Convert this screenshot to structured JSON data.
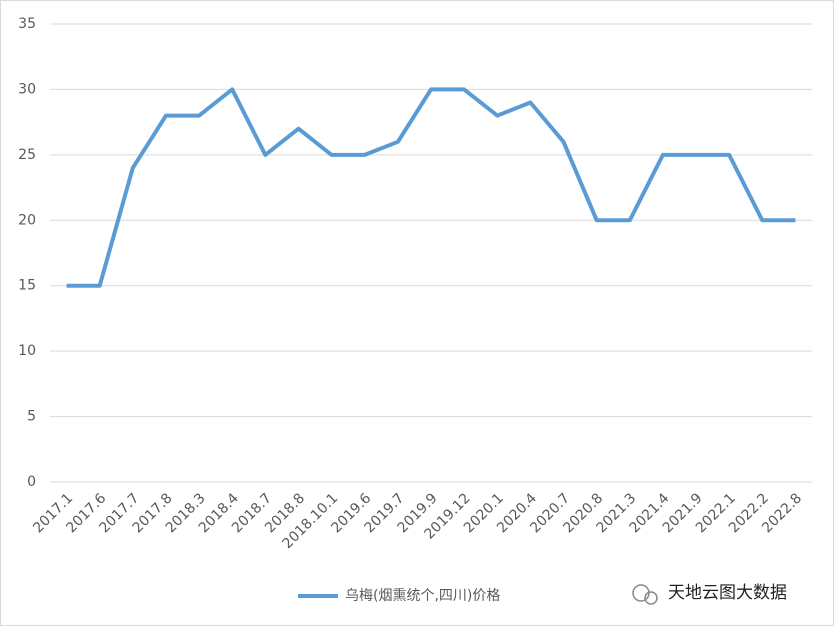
{
  "chart_data": {
    "type": "line",
    "categories": [
      "2017.1",
      "2017.6",
      "2017.7",
      "2017.8",
      "2018.3",
      "2018.4",
      "2018.7",
      "2018.8",
      "2018.10.1",
      "2019.6",
      "2019.7",
      "2019.9",
      "2019.12",
      "2020.1",
      "2020.4",
      "2020.7",
      "2020.8",
      "2021.3",
      "2021.4",
      "2021.9",
      "2022.1",
      "2022.2",
      "2022.8"
    ],
    "series": [
      {
        "name": "乌梅(烟熏统个,四川)价格",
        "color": "#5b9bd5",
        "values": [
          15,
          15,
          24,
          28,
          28,
          30,
          25,
          27,
          25,
          25,
          26,
          30,
          30,
          28,
          29,
          26,
          20,
          20,
          25,
          25,
          25,
          20,
          20
        ]
      }
    ],
    "ylim": [
      0,
      35
    ],
    "yticks": [
      0,
      5,
      10,
      15,
      20,
      25,
      30,
      35
    ],
    "grid": true,
    "legend": "bottom"
  },
  "watermark": "天地云图大数据"
}
